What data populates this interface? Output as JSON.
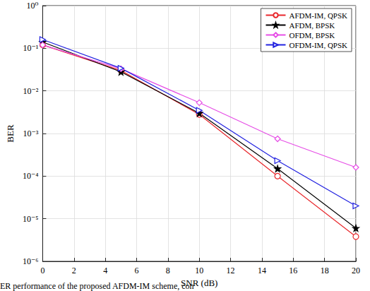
{
  "chart_data": {
    "type": "line",
    "x_label": "SNR (dB)",
    "y_label": "BER",
    "caption": "ER performance of the proposed AFDM-IM scheme, con",
    "x": [
      0,
      5,
      10,
      15,
      20
    ],
    "series": [
      {
        "name": "AFDM-IM, QPSK",
        "color": "#e8262b",
        "marker": "circle",
        "values": [
          0.12,
          0.03,
          0.0028,
          0.0001,
          3.8e-06
        ]
      },
      {
        "name": "AFDM, BPSK",
        "color": "#000000",
        "marker": "star",
        "values": [
          0.14,
          0.028,
          0.003,
          0.00015,
          6e-06
        ]
      },
      {
        "name": "OFDM, BPSK",
        "color": "#e64ee6",
        "marker": "diamond",
        "values": [
          0.12,
          0.033,
          0.0053,
          0.00075,
          0.00016
        ]
      },
      {
        "name": "OFDM-IM, QPSK",
        "color": "#2222e0",
        "marker": "triangle-right",
        "values": [
          0.16,
          0.034,
          0.0035,
          0.00023,
          2e-05
        ]
      }
    ],
    "xlim": [
      0,
      20
    ],
    "xticks": [
      0,
      2,
      4,
      6,
      8,
      10,
      12,
      14,
      16,
      18,
      20
    ],
    "ylim": [
      1e-06,
      1
    ],
    "yticks": [
      {
        "value": 1e-06,
        "label": "10⁻⁶"
      },
      {
        "value": 1e-05,
        "label": "10⁻⁵"
      },
      {
        "value": 0.0001,
        "label": "10⁻⁴"
      },
      {
        "value": 0.001,
        "label": "10⁻³"
      },
      {
        "value": 0.01,
        "label": "10⁻²"
      },
      {
        "value": 0.1,
        "label": "10⁻¹"
      },
      {
        "value": 1,
        "label": "10⁰"
      }
    ],
    "log": "y",
    "grid": true,
    "legend": "top-right"
  }
}
